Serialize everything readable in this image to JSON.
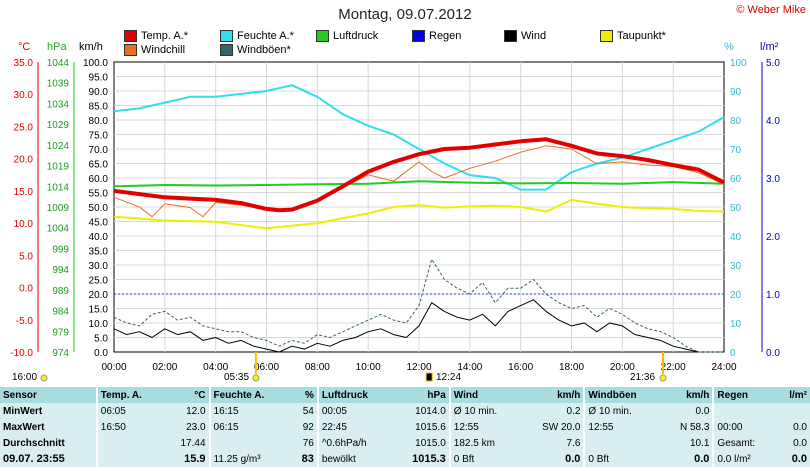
{
  "title": "Montag, 09.07.2012",
  "copyright": "© Weber Mike",
  "legend": [
    {
      "label": "Temp. A.*",
      "color": "#e00000"
    },
    {
      "label": "Feuchte A.*",
      "color": "#33ddee"
    },
    {
      "label": "Luftdruck",
      "color": "#22cc22"
    },
    {
      "label": "Regen",
      "color": "#0000ee"
    },
    {
      "label": "Wind",
      "color": "#000000"
    },
    {
      "label": "Taupunkt*",
      "color": "#eeee00"
    },
    {
      "label": "Windchill",
      "color": "#e87020"
    },
    {
      "label": "Windböen*",
      "color": "#336666"
    }
  ],
  "axis_heads": {
    "temp": "°C",
    "press": "hPa",
    "wind": "km/h",
    "hum": "%",
    "rain": "l/m²"
  },
  "sun": {
    "sunrise_row": "16:00",
    "sunrise": "05:35",
    "sunset": "21:36",
    "current": "12:24"
  },
  "chart_data": {
    "type": "line",
    "title": "Montag, 09.07.2012",
    "x_ticks": [
      "00:00",
      "02:00",
      "04:00",
      "06:00",
      "08:00",
      "10:00",
      "12:00",
      "14:00",
      "16:00",
      "18:00",
      "20:00",
      "22:00",
      "24:00"
    ],
    "axes": {
      "temp": {
        "label": "°C",
        "range": [
          -10,
          35
        ],
        "ticks": [
          "35.0",
          "30.0",
          "25.0",
          "20.0",
          "15.0",
          "10.0",
          "5.0",
          "0.0",
          "-5.0",
          "-10.0"
        ]
      },
      "press": {
        "label": "hPa",
        "range": [
          974,
          1044
        ],
        "ticks": [
          "1044",
          "1039",
          "1034",
          "1029",
          "1024",
          "1019",
          "1014",
          "1009",
          "1004",
          "999",
          "994",
          "989",
          "984",
          "979",
          "974"
        ]
      },
      "wind": {
        "label": "km/h",
        "range": [
          0,
          100
        ],
        "ticks": [
          "100.0",
          "95.0",
          "90.0",
          "85.0",
          "80.0",
          "75.0",
          "70.0",
          "65.0",
          "60.0",
          "55.0",
          "50.0",
          "45.0",
          "40.0",
          "35.0",
          "30.0",
          "25.0",
          "20.0",
          "15.0",
          "10.0",
          "5.0",
          "0.0"
        ]
      },
      "hum": {
        "label": "%",
        "range": [
          0,
          100
        ],
        "ticks": [
          "100",
          "90",
          "80",
          "70",
          "60",
          "50",
          "40",
          "30",
          "20",
          "10",
          "0"
        ]
      },
      "rain": {
        "label": "l/m²",
        "range": [
          0,
          5
        ],
        "ticks": [
          "5.0",
          "4.0",
          "3.0",
          "2.0",
          "1.0",
          "0.0"
        ]
      }
    },
    "series": [
      {
        "name": "Temp. A.*",
        "axis": "temp",
        "color": "#e00000",
        "width": 4,
        "x": [
          0,
          1,
          2,
          3,
          4,
          5,
          6,
          6.5,
          7,
          8,
          9,
          10,
          11,
          12,
          13,
          14,
          15,
          16,
          17,
          18,
          19,
          20,
          21,
          22,
          23,
          24
        ],
        "y": [
          15,
          14.5,
          14,
          13.8,
          13.6,
          13.1,
          12.2,
          12,
          12.1,
          13.5,
          15.7,
          18,
          19.5,
          20.7,
          21.5,
          21.7,
          22.2,
          22.7,
          23,
          22,
          20.8,
          20.4,
          19.8,
          19,
          18.3,
          16.3
        ]
      },
      {
        "name": "Feuchte A.*",
        "axis": "hum",
        "color": "#33ddee",
        "width": 2,
        "x": [
          0,
          1,
          2,
          3,
          4,
          5,
          6,
          7,
          8,
          9,
          10,
          11,
          12,
          13,
          14,
          15,
          16,
          17,
          18,
          19,
          20,
          21,
          22,
          23,
          24
        ],
        "y": [
          83,
          84,
          86,
          88,
          88,
          89,
          90,
          92,
          88,
          82,
          78,
          75,
          70,
          65,
          61,
          60,
          56,
          56,
          62,
          65,
          67,
          70,
          73,
          76,
          81
        ]
      },
      {
        "name": "Luftdruck",
        "axis": "press",
        "color": "#22cc22",
        "width": 2,
        "x": [
          0,
          2,
          4,
          6,
          8,
          10,
          12,
          14,
          16,
          18,
          20,
          22,
          24
        ],
        "y": [
          1014,
          1014.3,
          1014.2,
          1014.3,
          1014.5,
          1014.6,
          1015.2,
          1014.9,
          1014.7,
          1014.8,
          1014.6,
          1015,
          1014.6
        ]
      },
      {
        "name": "Taupunkt*",
        "axis": "temp",
        "color": "#eeee00",
        "width": 2,
        "x": [
          0,
          2,
          4,
          6,
          8,
          10,
          11,
          12,
          13,
          14,
          15,
          16,
          17,
          18,
          19,
          20,
          21,
          22,
          23,
          24
        ],
        "y": [
          11,
          10.4,
          10.2,
          9.2,
          10,
          11.5,
          12.5,
          12.8,
          12.4,
          12.6,
          12.7,
          12.5,
          11.8,
          13.6,
          13,
          12.5,
          12.3,
          12.2,
          11.9,
          11.8
        ]
      },
      {
        "name": "Windchill",
        "axis": "temp",
        "color": "#e87020",
        "width": 1,
        "x": [
          0,
          1,
          1.5,
          2,
          3,
          3.5,
          4,
          5,
          6,
          7,
          8,
          9,
          10,
          11,
          12,
          12.5,
          13,
          14,
          15,
          16,
          17,
          18,
          19,
          20,
          21,
          22,
          23,
          24
        ],
        "y": [
          14,
          12.5,
          11,
          13,
          12.4,
          11,
          13.2,
          12.8,
          12.2,
          12,
          13.3,
          15.5,
          17.5,
          16.5,
          19.5,
          18,
          17,
          18.5,
          19.6,
          21,
          22,
          21.5,
          19.2,
          19.5,
          19,
          18.8,
          17.8,
          16
        ]
      },
      {
        "name": "Wind",
        "axis": "wind",
        "color": "#000000",
        "width": 1,
        "x": [
          0,
          0.5,
          1,
          1.5,
          2,
          2.5,
          3,
          3.5,
          4,
          4.5,
          5,
          5.5,
          6,
          6.5,
          7,
          7.5,
          8,
          8.5,
          9,
          9.5,
          10,
          10.5,
          11,
          11.5,
          12,
          12.5,
          13,
          13.5,
          14,
          14.5,
          15,
          15.5,
          16,
          16.5,
          17,
          17.5,
          18,
          18.5,
          19,
          19.5,
          20,
          20.5,
          21,
          21.5,
          22,
          22.5,
          23,
          23.5,
          24
        ],
        "y": [
          8,
          6,
          7,
          5,
          8,
          6,
          7,
          4,
          5,
          3,
          4,
          2,
          1,
          0,
          2,
          1,
          3,
          2,
          4,
          5,
          7,
          8,
          6,
          5,
          9,
          17,
          14,
          12,
          11,
          13,
          9,
          14,
          16,
          18,
          14,
          11,
          9,
          10,
          7,
          10,
          9,
          6,
          5,
          4,
          2,
          1,
          0,
          0,
          0
        ]
      },
      {
        "name": "Windböen*",
        "axis": "wind",
        "color": "#336666",
        "width": 1,
        "dash": "3,2",
        "x": [
          0,
          0.5,
          1,
          1.5,
          2,
          2.5,
          3,
          3.5,
          4,
          4.5,
          5,
          5.5,
          6,
          6.5,
          7,
          7.5,
          8,
          8.5,
          9,
          9.5,
          10,
          10.5,
          11,
          11.5,
          12,
          12.5,
          13,
          13.5,
          14,
          14.5,
          15,
          15.5,
          16,
          16.5,
          17,
          17.5,
          18,
          18.5,
          19,
          19.5,
          20,
          20.5,
          21,
          21.5,
          22,
          22.5,
          23,
          23.5,
          24
        ],
        "y": [
          12,
          10,
          9,
          13,
          14,
          11,
          12,
          9,
          8,
          7,
          7,
          5,
          4,
          2,
          4,
          3,
          6,
          5,
          7,
          9,
          11,
          13,
          11,
          10,
          16,
          32,
          25,
          22,
          20,
          24,
          17,
          22,
          22,
          25,
          20,
          17,
          15,
          16,
          12,
          15,
          13,
          10,
          8,
          7,
          5,
          2,
          0,
          0,
          0
        ]
      }
    ],
    "marker_line": {
      "axis": "rain",
      "value": 1.0,
      "color": "#3344cc"
    }
  },
  "stats": {
    "headers": [
      "Sensor",
      "Temp. A.",
      "°C",
      "Feuchte A.",
      "%",
      "Luftdruck",
      "hPa",
      "Wind",
      "km/h",
      "Windböen",
      "km/h",
      "Regen",
      "l/m²"
    ],
    "rows": [
      [
        "MinWert",
        "06:05",
        "12.0",
        "16:15",
        "54",
        "00:05",
        "1014.0",
        "Ø 10 min.",
        "0.2",
        "Ø 10 min.",
        "0.0",
        "",
        ""
      ],
      [
        "MaxWert",
        "16:50",
        "23.0",
        "06:15",
        "92",
        "22:45",
        "1015.6",
        "12:55",
        "SW 20.0",
        "12:55",
        "N 58.3",
        "00:00",
        "0.0"
      ],
      [
        "Durchschnitt",
        "",
        "17.44",
        "",
        "76",
        "^0.6hPa/h",
        "1015.0",
        "182.5 km",
        "7.6",
        "",
        "10.1",
        "Gesamt:",
        "0.0"
      ],
      [
        "09.07. 23:55",
        "",
        "15.9",
        "11.25 g/m³",
        "83",
        "bewölkt",
        "1015.3",
        "0 Bft",
        "0.0",
        "0 Bft",
        "0.0",
        "0.0 l/m²",
        "0.0"
      ]
    ]
  }
}
